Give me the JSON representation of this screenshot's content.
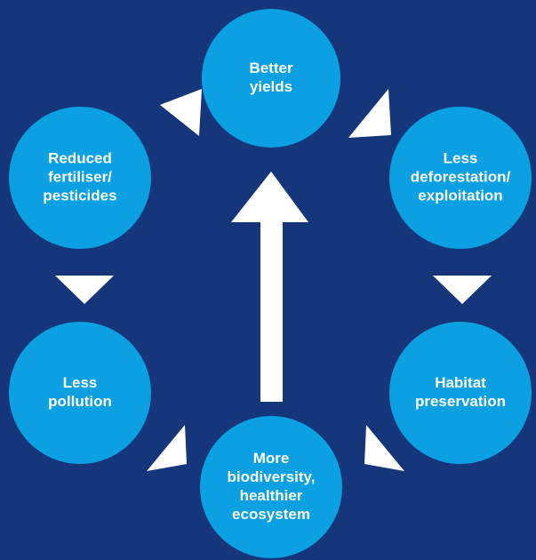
{
  "nodes": [
    {
      "lines": [
        "Better",
        "yields"
      ]
    },
    {
      "lines": [
        "Less",
        "deforestation/",
        "exploitation"
      ]
    },
    {
      "lines": [
        "Habitat",
        "preservation"
      ]
    },
    {
      "lines": [
        "More",
        "biodiversity,",
        "healthier",
        "ecosystem"
      ]
    },
    {
      "lines": [
        "Less",
        "pollution"
      ]
    },
    {
      "lines": [
        "Reduced",
        "fertiliser/",
        "pesticides"
      ]
    }
  ]
}
